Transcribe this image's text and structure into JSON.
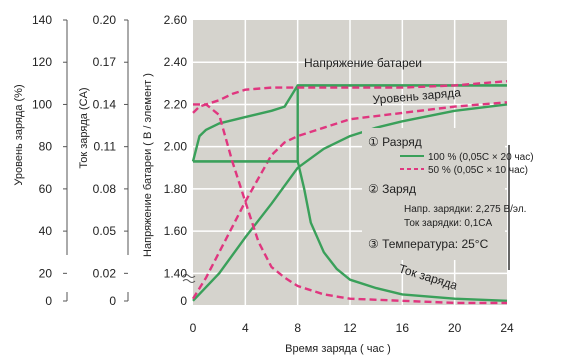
{
  "chart_data": {
    "type": "line",
    "x": {
      "label": "Время  заряда  ( час )",
      "ticks": [
        0,
        4,
        8,
        12,
        16,
        20,
        24
      ],
      "range": [
        0,
        24
      ]
    },
    "y_axes": {
      "charge_level": {
        "label": "Уровень  заряда  (%)",
        "ticks": [
          {
            "label": "140",
            "volt": 2.6
          },
          {
            "label": "120",
            "volt": 2.4
          },
          {
            "label": "100",
            "volt": 2.2
          },
          {
            "label": "80",
            "volt": 2.0
          },
          {
            "label": "60",
            "volt": 1.8
          },
          {
            "label": "40",
            "volt": 1.6
          },
          {
            "label": "20",
            "volt": 1.4
          },
          {
            "label": "0",
            "volt": 0
          }
        ]
      },
      "charge_current": {
        "label": "Ток  заряда  (CA)",
        "ticks": [
          {
            "label": "0.20",
            "volt": 2.6
          },
          {
            "label": "0.17",
            "volt": 2.4
          },
          {
            "label": "0.14",
            "volt": 2.2
          },
          {
            "label": "0.11",
            "volt": 2.0
          },
          {
            "label": "0.08",
            "volt": 1.8
          },
          {
            "label": "0.05",
            "volt": 1.6
          },
          {
            "label": "0.02",
            "volt": 1.4
          },
          {
            "label": "0",
            "volt": 0
          }
        ]
      },
      "voltage": {
        "label": "Напряжение  батареи  ( В / элемент )",
        "ticks": [
          {
            "label": "2.60",
            "volt": 2.6
          },
          {
            "label": "2.40",
            "volt": 2.4
          },
          {
            "label": "2.20",
            "volt": 2.2
          },
          {
            "label": "2.00",
            "volt": 2.0
          },
          {
            "label": "1.80",
            "volt": 1.8
          },
          {
            "label": "1.60",
            "volt": 1.6
          },
          {
            "label": "1.40",
            "volt": 1.4
          },
          {
            "label": "0",
            "volt": 0
          }
        ],
        "range": [
          1.25,
          2.6
        ]
      }
    },
    "curve_labels": {
      "voltage": "Напряжение батареи",
      "level": "Уровень  заряда",
      "current": "Ток  заряда"
    },
    "legend": {
      "discharge": "① Разряд",
      "line100": "100 % (0,05C × 20 час)",
      "line50": "50 % (0,05C × 10 час)",
      "charge": "② Заряд",
      "charge_voltage": "Напр. зарядки: 2,275 В/эл.",
      "charge_current": "Ток зарядки: 0,1CA",
      "temperature": "③ Температура: 25°C"
    },
    "colors": {
      "plot_bg": "#d5d3cd",
      "grid": "#ffffff",
      "solid": "#3aa05a",
      "dashed": "#e0367f"
    },
    "series": [
      {
        "name": "100 % (0,05C × 20 час)",
        "kind": "voltage",
        "style": "solid",
        "points": [
          [
            0,
            1.93
          ],
          [
            8,
            1.93
          ],
          [
            8,
            2.29
          ],
          [
            24,
            2.29
          ]
        ]
      },
      {
        "name": "100 % (0,05C × 20 час)",
        "kind": "voltage",
        "style": "solid",
        "points": [
          [
            0,
            1.93
          ],
          [
            0.5,
            2.05
          ],
          [
            1,
            2.08
          ],
          [
            2,
            2.11
          ],
          [
            4,
            2.14
          ],
          [
            6,
            2.17
          ],
          [
            7,
            2.19
          ],
          [
            8,
            2.29
          ],
          [
            12,
            2.29
          ],
          [
            24,
            2.29
          ]
        ]
      },
      {
        "name": "50 % (0,05C × 10 час)",
        "kind": "voltage",
        "style": "dashed",
        "points": [
          [
            0,
            2.16
          ],
          [
            0.5,
            2.19
          ],
          [
            1,
            2.2
          ],
          [
            2,
            2.22
          ],
          [
            3,
            2.25
          ],
          [
            4,
            2.27
          ],
          [
            6,
            2.28
          ],
          [
            7,
            2.28
          ],
          [
            8,
            2.28
          ],
          [
            12,
            2.28
          ],
          [
            16,
            2.28
          ],
          [
            20,
            2.29
          ],
          [
            24,
            2.31
          ]
        ]
      },
      {
        "name": "100 % (0,05C × 20 час)",
        "kind": "level",
        "style": "solid",
        "points": [
          [
            0,
            1.27
          ],
          [
            2,
            1.4
          ],
          [
            4,
            1.57
          ],
          [
            6,
            1.73
          ],
          [
            8,
            1.9
          ],
          [
            10,
            1.99
          ],
          [
            12,
            2.05
          ],
          [
            14,
            2.09
          ],
          [
            16,
            2.12
          ],
          [
            20,
            2.17
          ],
          [
            24,
            2.2
          ]
        ]
      },
      {
        "name": "50 % (0,05C × 10 час)",
        "kind": "level",
        "style": "dashed",
        "points": [
          [
            0,
            1.28
          ],
          [
            1,
            1.38
          ],
          [
            2,
            1.5
          ],
          [
            3,
            1.62
          ],
          [
            4,
            1.74
          ],
          [
            6,
            1.96
          ],
          [
            7,
            2.02
          ],
          [
            8,
            2.05
          ],
          [
            10,
            2.09
          ],
          [
            12,
            2.13
          ],
          [
            16,
            2.16
          ],
          [
            20,
            2.19
          ],
          [
            24,
            2.21
          ]
        ]
      },
      {
        "name": "100 % (0,05C × 20 час)",
        "kind": "current",
        "style": "solid",
        "points": [
          [
            0,
            1.93
          ],
          [
            1,
            1.93
          ],
          [
            7,
            1.93
          ],
          [
            8,
            1.93
          ],
          [
            8.5,
            1.8
          ],
          [
            9,
            1.64
          ],
          [
            10,
            1.5
          ],
          [
            11,
            1.42
          ],
          [
            12,
            1.37
          ],
          [
            14,
            1.33
          ],
          [
            16,
            1.3
          ],
          [
            20,
            1.28
          ],
          [
            24,
            1.27
          ]
        ]
      },
      {
        "name": "50 % (0,05C × 10 час)",
        "kind": "current",
        "style": "dashed",
        "points": [
          [
            0,
            2.2
          ],
          [
            1,
            2.2
          ],
          [
            2,
            2.15
          ],
          [
            3,
            1.93
          ],
          [
            4,
            1.74
          ],
          [
            5,
            1.55
          ],
          [
            6,
            1.43
          ],
          [
            7,
            1.38
          ],
          [
            8,
            1.34
          ],
          [
            10,
            1.3
          ],
          [
            12,
            1.28
          ],
          [
            16,
            1.27
          ],
          [
            20,
            1.26
          ],
          [
            24,
            1.26
          ]
        ]
      }
    ]
  }
}
